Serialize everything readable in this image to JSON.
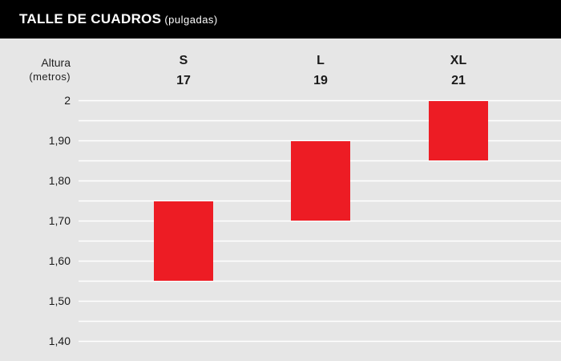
{
  "header": {
    "title": "TALLE DE CUADROS",
    "subtitle": "(pulgadas)"
  },
  "colors": {
    "header_bg": "#000000",
    "background": "#e6e6e6",
    "bar": "#ed1c24",
    "gridline": "#ffffff"
  },
  "chart_data": {
    "type": "bar",
    "orientation": "floating-range",
    "title": "TALLE DE CUADROS",
    "subtitle": "(pulgadas)",
    "ylabel": "Altura",
    "ylabel_unit": "(metros)",
    "ylim": [
      1.4,
      2.0
    ],
    "grid": true,
    "yticks": [
      {
        "value": 2.0,
        "label": "2"
      },
      {
        "value": 1.9,
        "label": "1,90"
      },
      {
        "value": 1.8,
        "label": "1,80"
      },
      {
        "value": 1.7,
        "label": "1,70"
      },
      {
        "value": 1.6,
        "label": "1,60"
      },
      {
        "value": 1.5,
        "label": "1,50"
      },
      {
        "value": 1.4,
        "label": "1,40"
      }
    ],
    "categories": [
      "S",
      "L",
      "XL"
    ],
    "frame_sizes": [
      "17",
      "19",
      "21"
    ],
    "ranges": [
      {
        "size": "S",
        "frame": "17",
        "low": 1.55,
        "high": 1.75
      },
      {
        "size": "L",
        "frame": "19",
        "low": 1.7,
        "high": 1.9
      },
      {
        "size": "XL",
        "frame": "21",
        "low": 1.85,
        "high": 2.0
      }
    ]
  }
}
